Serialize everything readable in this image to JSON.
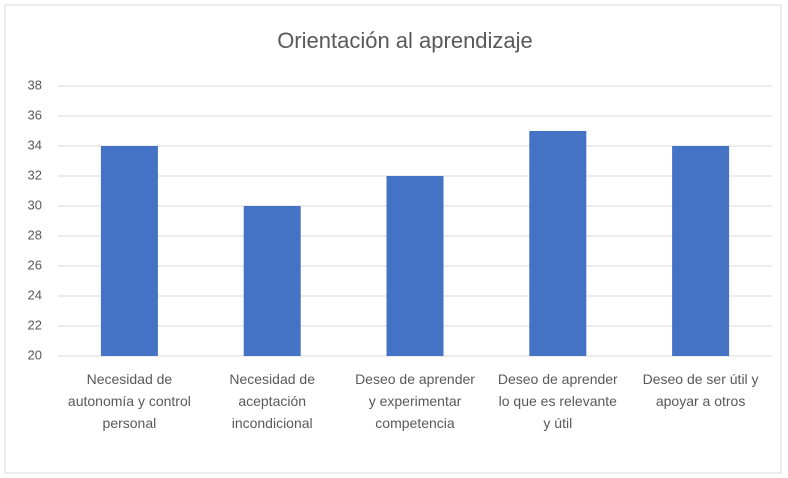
{
  "chart_data": {
    "type": "bar",
    "title": "Orientación al aprendizaje",
    "categories": [
      "Necesidad de autonomía y control personal",
      "Necesidad de aceptación incondicional",
      "Deseo de aprender y experimentar competencia",
      "Deseo de aprender lo que es relevante y útil",
      "Deseo de ser útil y apoyar a otros"
    ],
    "values": [
      34,
      30,
      32,
      35,
      34
    ],
    "color": "#4472c4",
    "ylim": [
      20,
      38
    ],
    "yticks": [
      20,
      22,
      24,
      26,
      28,
      30,
      32,
      34,
      36,
      38
    ],
    "grid": true
  }
}
